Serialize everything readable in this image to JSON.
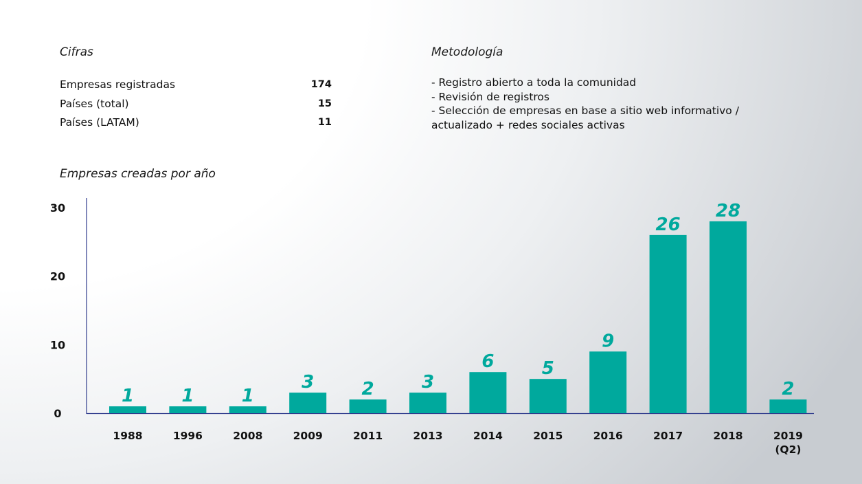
{
  "cifras": {
    "title": "Cifras",
    "rows": [
      {
        "label": "Empresas registradas",
        "value": "174"
      },
      {
        "label": "Países (total)",
        "value": "15"
      },
      {
        "label": "Países (LATAM)",
        "value": "11"
      }
    ]
  },
  "metodologia": {
    "title": "Metodología",
    "lines": [
      "- Registro abierto a toda la comunidad",
      "- Revisión de registros",
      "- Selección de empresas en base a sitio web informativo /",
      "actualizado + redes sociales activas"
    ]
  },
  "colors": {
    "bar": "#00a99d",
    "axis": "#2e3a8c",
    "label": "#00a99d"
  },
  "chart_data": {
    "type": "bar",
    "title": "Empresas creadas por año",
    "categories": [
      "1988",
      "1996",
      "2008",
      "2009",
      "2011",
      "2013",
      "2014",
      "2015",
      "2016",
      "2017",
      "2018",
      "2019 (Q2)"
    ],
    "values": [
      1,
      1,
      1,
      3,
      2,
      3,
      6,
      5,
      9,
      26,
      28,
      2
    ],
    "yticks": [
      0,
      10,
      20,
      30
    ],
    "ylim": [
      0,
      30
    ],
    "grid": false,
    "legend": "none"
  }
}
